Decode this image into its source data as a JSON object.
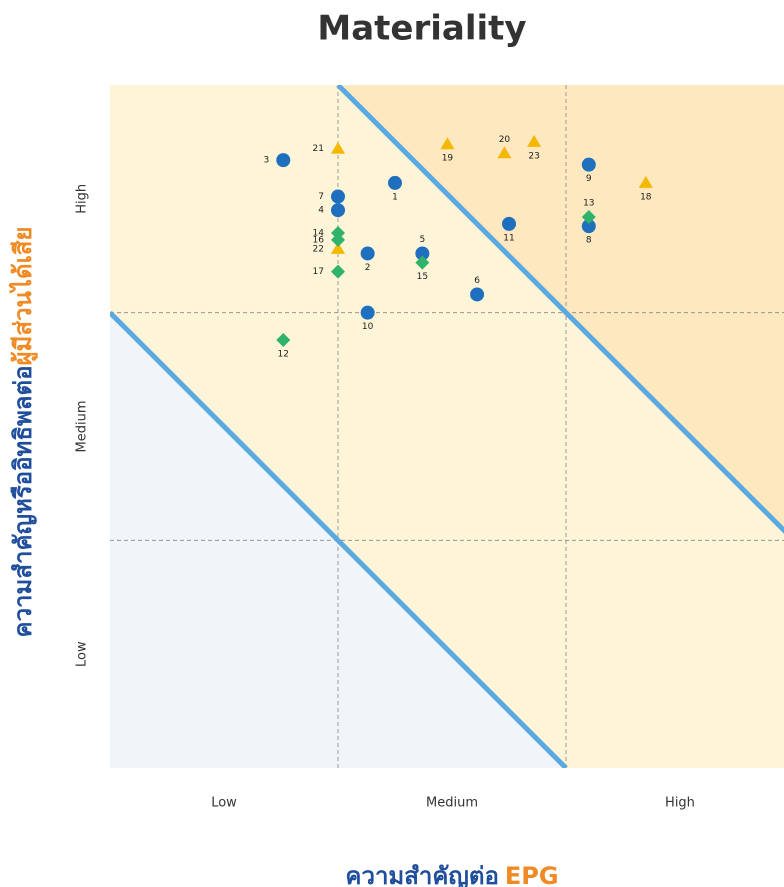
{
  "chart_data": {
    "type": "scatter",
    "title": "Materiality",
    "x_label_parts": [
      "ความสำคัญต่อ",
      "EPG"
    ],
    "y_label_parts": [
      "ความสำคัญหรืออิทธิพลต่อ",
      "ผู้มีส่วนได้เสีย"
    ],
    "xlim": [
      0,
      3
    ],
    "ylim": [
      0,
      3
    ],
    "xticks": [
      {
        "value": 0.5,
        "label": "Low"
      },
      {
        "value": 1.5,
        "label": "Medium"
      },
      {
        "value": 2.5,
        "label": "High"
      }
    ],
    "yticks": [
      {
        "value": 0.5,
        "label": "Low"
      },
      {
        "value": 1.5,
        "label": "Medium"
      },
      {
        "value": 2.5,
        "label": "High"
      }
    ],
    "grid": true,
    "series": [
      {
        "color": "#1f6fbf",
        "shape": "circle",
        "labels": [
          1,
          2,
          3,
          4,
          5,
          6,
          7,
          8,
          9,
          10,
          11
        ],
        "x": [
          1.25,
          1.13,
          0.76,
          1.0,
          1.37,
          1.61,
          1.0,
          2.1,
          2.1,
          1.13,
          1.75
        ],
        "values": [
          2.57,
          2.26,
          2.67,
          2.45,
          2.26,
          2.08,
          2.51,
          2.38,
          2.65,
          2.0,
          2.39
        ]
      },
      {
        "color": "#f5b800",
        "shape": "triangle",
        "labels": [
          18,
          19,
          20,
          21,
          22,
          23
        ],
        "x": [
          2.35,
          1.48,
          1.73,
          1.0,
          1.0,
          1.86
        ],
        "values": [
          2.57,
          2.74,
          2.7,
          2.72,
          2.28,
          2.75
        ]
      },
      {
        "color": "#2fb36a",
        "shape": "diamond",
        "labels": [
          12,
          13,
          14,
          15,
          16,
          17
        ],
        "x": [
          0.76,
          2.1,
          1.0,
          1.37,
          1.0,
          1.0
        ],
        "values": [
          1.88,
          2.42,
          2.35,
          2.22,
          2.32,
          2.18
        ]
      }
    ]
  }
}
